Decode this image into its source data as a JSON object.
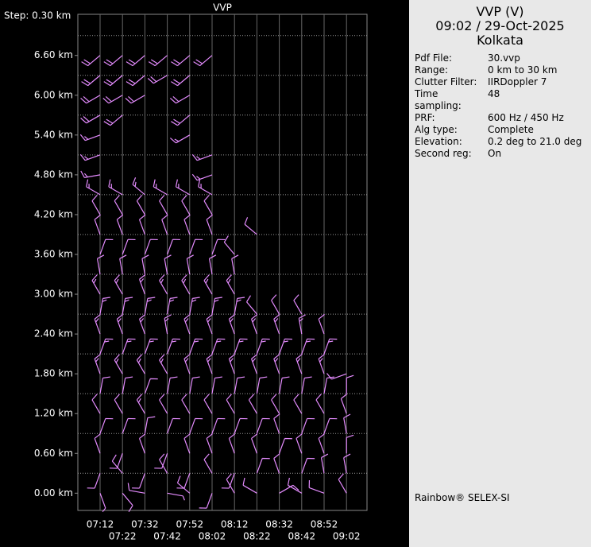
{
  "chart_data": {
    "type": "barb",
    "title": "VVP",
    "step_label": "Step: 0.30 km",
    "categories": [
      "07:12",
      "07:22",
      "07:32",
      "07:42",
      "07:52",
      "08:02",
      "08:12",
      "08:22",
      "08:32",
      "08:42",
      "08:52",
      "09:02"
    ],
    "levels": [
      0,
      0.3,
      0.6,
      0.9,
      1.2,
      1.5,
      1.8,
      2.1,
      2.4,
      2.7,
      3.0,
      3.3,
      3.6,
      3.9,
      4.2,
      4.5,
      4.8,
      5.1,
      5.4,
      5.7,
      6.0,
      6.3,
      6.6
    ],
    "ylim": [
      -0.26,
      7.22
    ],
    "yticks": [
      {
        "value": 0,
        "label": "0.00 km"
      },
      {
        "value": 0.6,
        "label": "0.60 km"
      },
      {
        "value": 1.2,
        "label": "1.20 km"
      },
      {
        "value": 1.8,
        "label": "1.80 km"
      },
      {
        "value": 2.4,
        "label": "2.40 km"
      },
      {
        "value": 3.0,
        "label": "3.00 km"
      },
      {
        "value": 3.6,
        "label": "3.60 km"
      },
      {
        "value": 4.2,
        "label": "4.20 km"
      },
      {
        "value": 4.8,
        "label": "4.80 km"
      },
      {
        "value": 5.4,
        "label": "5.40 km"
      },
      {
        "value": 6.0,
        "label": "6.00 km"
      },
      {
        "value": 6.6,
        "label": "6.60 km"
      }
    ],
    "ygrid": [
      0.3,
      0.9,
      1.5,
      2.1,
      2.7,
      3.3,
      3.9,
      4.5,
      5.1,
      5.7,
      6.3,
      6.9
    ],
    "color": "#e58cff",
    "series": [
      {
        "direction": [
          160,
          200,
          340,
          20,
          330,
          10,
          340,
          20,
          340,
          10,
          330,
          350,
          20,
          340,
          330,
          300,
          260,
          250,
          250,
          240,
          240,
          230,
          230
        ],
        "speed": [
          5,
          10,
          10,
          10,
          10,
          10,
          15,
          15,
          15,
          15,
          15,
          10,
          10,
          10,
          10,
          15,
          15,
          15,
          15,
          20,
          20,
          20,
          20
        ]
      },
      {
        "direction": [
          140,
          320,
          200,
          20,
          330,
          10,
          330,
          20,
          340,
          10,
          330,
          350,
          20,
          340,
          330,
          300,
          null,
          null,
          null,
          230,
          240,
          230,
          230
        ],
        "speed": [
          10,
          10,
          10,
          10,
          10,
          10,
          15,
          15,
          15,
          15,
          15,
          10,
          10,
          10,
          10,
          15,
          null,
          null,
          null,
          20,
          20,
          20,
          20
        ]
      },
      {
        "direction": [
          280,
          200,
          340,
          10,
          330,
          20,
          330,
          20,
          340,
          10,
          340,
          350,
          20,
          340,
          330,
          310,
          null,
          null,
          null,
          null,
          240,
          230,
          230
        ],
        "speed": [
          10,
          10,
          10,
          10,
          15,
          10,
          15,
          15,
          15,
          15,
          15,
          10,
          10,
          10,
          10,
          15,
          null,
          null,
          null,
          null,
          20,
          20,
          20
        ]
      },
      {
        "direction": [
          100,
          330,
          200,
          20,
          330,
          10,
          330,
          20,
          350,
          10,
          330,
          350,
          20,
          340,
          330,
          300,
          null,
          null,
          null,
          null,
          null,
          240,
          230
        ],
        "speed": [
          5,
          10,
          10,
          10,
          10,
          10,
          15,
          15,
          15,
          15,
          15,
          10,
          10,
          10,
          10,
          15,
          null,
          null,
          null,
          null,
          null,
          20,
          20
        ]
      },
      {
        "direction": [
          310,
          200,
          340,
          20,
          330,
          10,
          340,
          20,
          340,
          10,
          330,
          350,
          20,
          340,
          330,
          300,
          null,
          null,
          240,
          230,
          240,
          230,
          230
        ],
        "speed": [
          10,
          10,
          10,
          10,
          10,
          10,
          15,
          15,
          15,
          15,
          15,
          10,
          10,
          10,
          10,
          15,
          null,
          null,
          15,
          20,
          20,
          20,
          20
        ]
      },
      {
        "direction": [
          200,
          330,
          340,
          20,
          330,
          10,
          340,
          20,
          340,
          10,
          330,
          350,
          20,
          340,
          330,
          300,
          250,
          250,
          null,
          null,
          null,
          null,
          230
        ],
        "speed": [
          10,
          10,
          10,
          10,
          10,
          10,
          15,
          15,
          15,
          15,
          15,
          10,
          10,
          10,
          10,
          15,
          15,
          15,
          null,
          null,
          null,
          null,
          20
        ]
      },
      {
        "direction": [
          330,
          200,
          340,
          20,
          330,
          10,
          340,
          20,
          340,
          10,
          330,
          350,
          320,
          null,
          null,
          null,
          null,
          null,
          null,
          null,
          null,
          null,
          null
        ],
        "speed": [
          10,
          10,
          10,
          10,
          10,
          10,
          15,
          15,
          15,
          15,
          15,
          10,
          10,
          null,
          null,
          null,
          null,
          null,
          null,
          null,
          null,
          null,
          null
        ]
      },
      {
        "direction": [
          300,
          20,
          340,
          20,
          330,
          10,
          340,
          20,
          340,
          320,
          null,
          null,
          null,
          310,
          null,
          null,
          null,
          null,
          null,
          null,
          null,
          null,
          null
        ],
        "speed": [
          10,
          10,
          10,
          10,
          10,
          10,
          15,
          15,
          15,
          10,
          null,
          null,
          null,
          10,
          null,
          null,
          null,
          null,
          null,
          null,
          null,
          null,
          null
        ]
      },
      {
        "direction": [
          60,
          340,
          20,
          340,
          330,
          10,
          340,
          20,
          340,
          330,
          null,
          null,
          null,
          null,
          null,
          null,
          null,
          null,
          null,
          null,
          null,
          null,
          null
        ],
        "speed": [
          10,
          10,
          10,
          10,
          10,
          10,
          15,
          15,
          15,
          10,
          null,
          null,
          null,
          null,
          null,
          null,
          null,
          null,
          null,
          null,
          null,
          null,
          null
        ]
      },
      {
        "direction": [
          300,
          20,
          340,
          20,
          330,
          10,
          340,
          20,
          350,
          330,
          null,
          null,
          null,
          null,
          null,
          null,
          null,
          null,
          null,
          null,
          null,
          null,
          null
        ],
        "speed": [
          10,
          10,
          10,
          10,
          10,
          10,
          15,
          15,
          15,
          10,
          null,
          null,
          null,
          null,
          null,
          null,
          null,
          null,
          null,
          null,
          null,
          null,
          null
        ]
      },
      {
        "direction": [
          290,
          350,
          340,
          20,
          330,
          10,
          340,
          20,
          340,
          null,
          null,
          null,
          null,
          null,
          null,
          null,
          null,
          null,
          null,
          null,
          null,
          null,
          null
        ],
        "speed": [
          10,
          10,
          10,
          10,
          10,
          10,
          15,
          15,
          10,
          null,
          null,
          null,
          null,
          null,
          null,
          null,
          null,
          null,
          null,
          null,
          null,
          null,
          null
        ]
      },
      {
        "direction": [
          330,
          350,
          0,
          350,
          340,
          0,
          250,
          null,
          null,
          null,
          null,
          null,
          null,
          null,
          null,
          null,
          null,
          null,
          null,
          null,
          null,
          null,
          null
        ],
        "speed": [
          10,
          10,
          10,
          10,
          10,
          10,
          10,
          null,
          null,
          null,
          null,
          null,
          null,
          null,
          null,
          null,
          null,
          null,
          null,
          null,
          null,
          null,
          null
        ]
      }
    ]
  },
  "panel": {
    "title": "VVP (V)",
    "time": "09:02 / 29-Oct-2025",
    "place": "Kolkata",
    "fields": [
      [
        "Pdf File:",
        "30.vvp"
      ],
      [
        "Range:",
        "0 km to 30 km"
      ],
      [
        "Clutter Filter:",
        "IIRDoppler 7"
      ],
      [
        "Time sampling:",
        "48"
      ],
      [
        "PRF:",
        "600 Hz / 450 Hz"
      ],
      [
        "Alg type:",
        "Complete"
      ],
      [
        "Elevation:",
        "0.2 deg to 21.0 deg"
      ],
      [
        "Second reg:",
        "On"
      ]
    ],
    "footer": "Rainbow® SELEX-SI"
  }
}
